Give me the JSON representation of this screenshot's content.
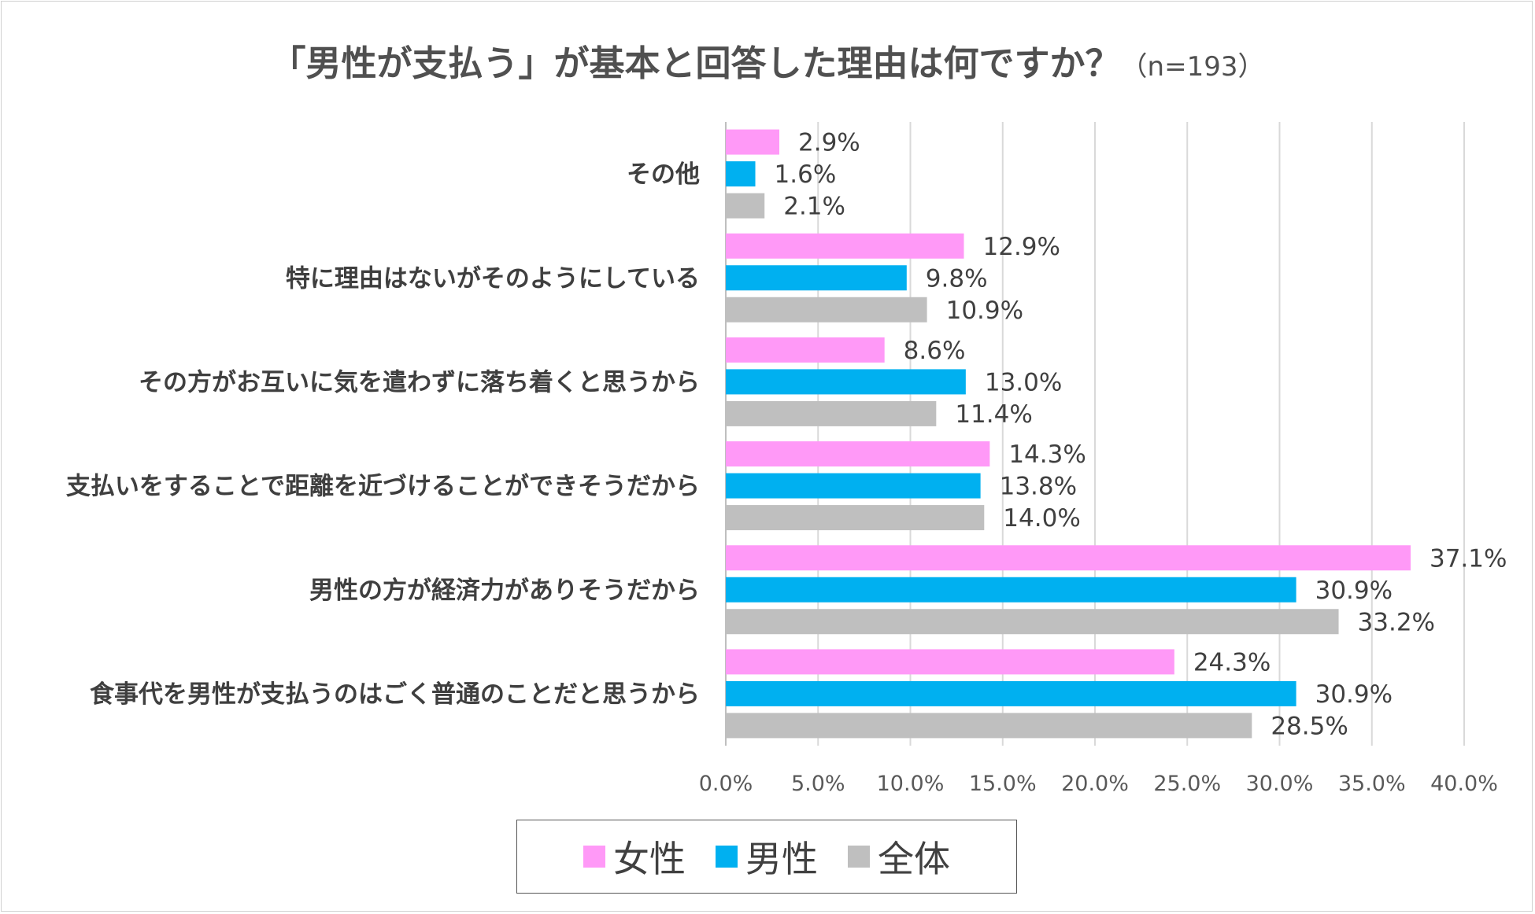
{
  "title": {
    "main": "「男性が支払う」が基本と回答した理由は何ですか？",
    "note": "（n=193）"
  },
  "chart_data": {
    "type": "bar",
    "orientation": "horizontal",
    "categories": [
      "その他",
      "特に理由はないがそのようにしている",
      "その方がお互いに気を遣わずに落ち着くと思うから",
      "支払いをすることで距離を近づけることができそうだから",
      "男性の方が経済力がありそうだから",
      "食事代を男性が支払うのはごく普通のことだと思うから"
    ],
    "series": [
      {
        "name": "女性",
        "color": "#ff99f7",
        "values": [
          2.9,
          12.9,
          8.6,
          14.3,
          37.1,
          24.3
        ]
      },
      {
        "name": "男性",
        "color": "#00b0f0",
        "values": [
          1.6,
          9.8,
          13.0,
          13.8,
          30.9,
          30.9
        ]
      },
      {
        "name": "全体",
        "color": "#bfbfbf",
        "values": [
          2.1,
          10.9,
          11.4,
          14.0,
          33.2,
          28.5
        ]
      }
    ],
    "value_labels": [
      [
        "2.9%",
        "12.9%",
        "8.6%",
        "14.3%",
        "37.1%",
        "24.3%"
      ],
      [
        "1.6%",
        "9.8%",
        "13.0%",
        "13.8%",
        "30.9%",
        "30.9%"
      ],
      [
        "2.1%",
        "10.9%",
        "11.4%",
        "14.0%",
        "33.2%",
        "28.5%"
      ]
    ],
    "xlim": [
      0,
      40
    ],
    "xticks": [
      0,
      5,
      10,
      15,
      20,
      25,
      30,
      35,
      40
    ],
    "xtick_labels": [
      "0.0%",
      "5.0%",
      "10.0%",
      "15.0%",
      "20.0%",
      "25.0%",
      "30.0%",
      "35.0%",
      "40.0%"
    ],
    "grid": "vertical",
    "legend_position": "bottom-center"
  },
  "legend": {
    "items": [
      {
        "label": "女性",
        "color": "#ff99f7"
      },
      {
        "label": "男性",
        "color": "#00b0f0"
      },
      {
        "label": "全体",
        "color": "#bfbfbf"
      }
    ]
  }
}
